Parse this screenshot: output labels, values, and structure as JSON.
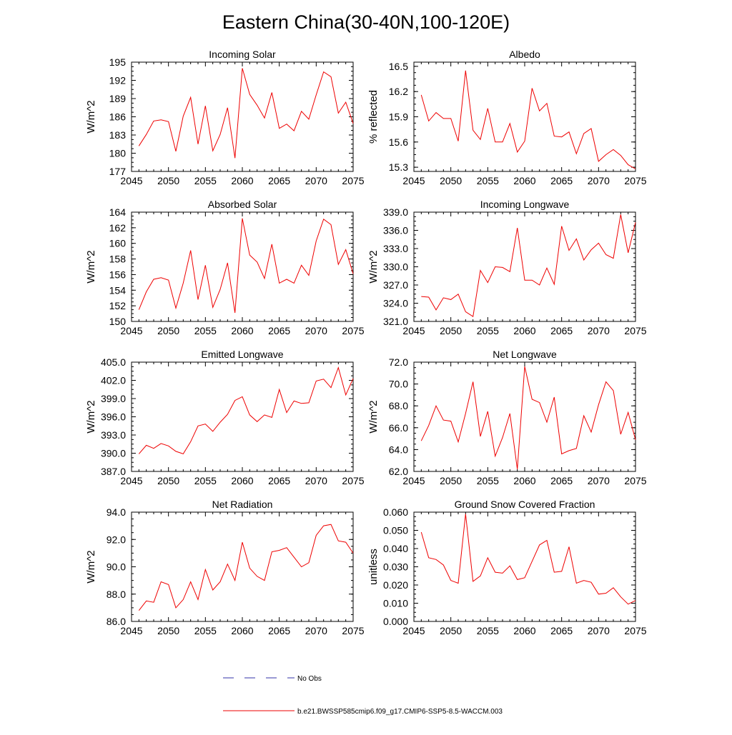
{
  "figure_title": "Eastern China(30-40N,100-120E)",
  "chart_data": [
    {
      "type": "line",
      "title": "Incoming Solar",
      "xlabel": "",
      "ylabel": "W/m^2",
      "xlim": [
        2045,
        2075
      ],
      "ylim": [
        177,
        195
      ],
      "xticks": [
        2045,
        2050,
        2055,
        2060,
        2065,
        2070,
        2075
      ],
      "yticks": [
        "177",
        "180",
        "183",
        "186",
        "189",
        "192",
        "195"
      ],
      "x": [
        2046,
        2047,
        2048,
        2049,
        2050,
        2051,
        2052,
        2053,
        2054,
        2055,
        2056,
        2057,
        2058,
        2059,
        2060,
        2061,
        2062,
        2063,
        2064,
        2065,
        2066,
        2067,
        2068,
        2069,
        2070,
        2071,
        2072,
        2073,
        2074,
        2075
      ],
      "values": [
        181.2,
        183.1,
        185.3,
        185.5,
        185.2,
        180.3,
        186.1,
        189.2,
        181.5,
        187.8,
        180.4,
        183.1,
        187.5,
        179.2,
        194.0,
        189.7,
        187.9,
        185.8,
        190.0,
        184.1,
        184.8,
        183.7,
        186.9,
        185.6,
        189.6,
        193.4,
        192.6,
        186.6,
        188.4,
        184.9
      ]
    },
    {
      "type": "line",
      "title": "Albedo",
      "xlabel": "",
      "ylabel": "% reflected",
      "xlim": [
        2045,
        2075
      ],
      "ylim": [
        15.25,
        16.55
      ],
      "xticks": [
        2045,
        2050,
        2055,
        2060,
        2065,
        2070,
        2075
      ],
      "yticks": [
        "15.3",
        "15.6",
        "15.9",
        "16.2",
        "16.5"
      ],
      "x": [
        2046,
        2047,
        2048,
        2049,
        2050,
        2051,
        2052,
        2053,
        2054,
        2055,
        2056,
        2057,
        2058,
        2059,
        2060,
        2061,
        2062,
        2063,
        2064,
        2065,
        2066,
        2067,
        2068,
        2069,
        2070,
        2071,
        2072,
        2073,
        2074,
        2075
      ],
      "values": [
        16.16,
        15.85,
        15.95,
        15.88,
        15.88,
        15.61,
        16.45,
        15.74,
        15.63,
        16.0,
        15.6,
        15.6,
        15.82,
        15.48,
        15.61,
        16.24,
        15.97,
        16.06,
        15.67,
        15.66,
        15.72,
        15.46,
        15.7,
        15.76,
        15.37,
        15.45,
        15.51,
        15.44,
        15.33,
        15.28
      ]
    },
    {
      "type": "line",
      "title": "Absorbed Solar",
      "xlabel": "",
      "ylabel": "W/m^2",
      "xlim": [
        2045,
        2075
      ],
      "ylim": [
        150,
        164
      ],
      "xticks": [
        2045,
        2050,
        2055,
        2060,
        2065,
        2070,
        2075
      ],
      "yticks": [
        "150",
        "152",
        "154",
        "156",
        "158",
        "160",
        "162",
        "164"
      ],
      "x": [
        2046,
        2047,
        2048,
        2049,
        2050,
        2051,
        2052,
        2053,
        2054,
        2055,
        2056,
        2057,
        2058,
        2059,
        2060,
        2061,
        2062,
        2063,
        2064,
        2065,
        2066,
        2067,
        2068,
        2069,
        2070,
        2071,
        2072,
        2073,
        2074,
        2075
      ],
      "values": [
        151.5,
        153.8,
        155.4,
        155.6,
        155.3,
        151.7,
        154.9,
        159.1,
        152.8,
        157.2,
        151.8,
        154.1,
        157.5,
        151.1,
        163.2,
        158.5,
        157.6,
        155.5,
        159.9,
        154.9,
        155.4,
        154.9,
        157.2,
        155.9,
        160.3,
        163.1,
        162.4,
        157.3,
        159.2,
        156.1
      ]
    },
    {
      "type": "line",
      "title": "Incoming Longwave",
      "xlabel": "",
      "ylabel": "W/m^2",
      "xlim": [
        2045,
        2075
      ],
      "ylim": [
        321,
        339
      ],
      "xticks": [
        2045,
        2050,
        2055,
        2060,
        2065,
        2070,
        2075
      ],
      "yticks": [
        "321.0",
        "324.0",
        "327.0",
        "330.0",
        "333.0",
        "336.0",
        "339.0"
      ],
      "x": [
        2046,
        2047,
        2048,
        2049,
        2050,
        2051,
        2052,
        2053,
        2054,
        2055,
        2056,
        2057,
        2058,
        2059,
        2060,
        2061,
        2062,
        2063,
        2064,
        2065,
        2066,
        2067,
        2068,
        2069,
        2070,
        2071,
        2072,
        2073,
        2074,
        2075
      ],
      "values": [
        325.1,
        325.0,
        322.9,
        324.9,
        324.6,
        325.5,
        322.6,
        321.8,
        329.4,
        327.4,
        330.0,
        329.9,
        329.2,
        336.4,
        327.8,
        327.8,
        327.0,
        329.8,
        327.1,
        336.7,
        332.7,
        334.6,
        331.1,
        332.8,
        333.9,
        332.0,
        331.4,
        338.6,
        332.3,
        337.3
      ]
    },
    {
      "type": "line",
      "title": "Emitted Longwave",
      "xlabel": "",
      "ylabel": "W/m^2",
      "xlim": [
        2045,
        2075
      ],
      "ylim": [
        387,
        405
      ],
      "xticks": [
        2045,
        2050,
        2055,
        2060,
        2065,
        2070,
        2075
      ],
      "yticks": [
        "387.0",
        "390.0",
        "393.0",
        "396.0",
        "399.0",
        "402.0",
        "405.0"
      ],
      "x": [
        2046,
        2047,
        2048,
        2049,
        2050,
        2051,
        2052,
        2053,
        2054,
        2055,
        2056,
        2057,
        2058,
        2059,
        2060,
        2061,
        2062,
        2063,
        2064,
        2065,
        2066,
        2067,
        2068,
        2069,
        2070,
        2071,
        2072,
        2073,
        2074,
        2075
      ],
      "values": [
        389.9,
        391.3,
        390.8,
        391.6,
        391.2,
        390.3,
        389.9,
        391.9,
        394.5,
        394.8,
        393.6,
        395.1,
        396.4,
        398.7,
        399.3,
        396.3,
        395.2,
        396.3,
        395.9,
        400.5,
        396.7,
        398.6,
        398.2,
        398.3,
        401.9,
        402.2,
        400.8,
        404.1,
        399.6,
        402.3
      ]
    },
    {
      "type": "line",
      "title": "Net Longwave",
      "xlabel": "",
      "ylabel": "W/m^2",
      "xlim": [
        2045,
        2075
      ],
      "ylim": [
        62,
        72
      ],
      "xticks": [
        2045,
        2050,
        2055,
        2060,
        2065,
        2070,
        2075
      ],
      "yticks": [
        "62.0",
        "64.0",
        "66.0",
        "68.0",
        "70.0",
        "72.0"
      ],
      "x": [
        2046,
        2047,
        2048,
        2049,
        2050,
        2051,
        2052,
        2053,
        2054,
        2055,
        2056,
        2057,
        2058,
        2059,
        2060,
        2061,
        2062,
        2063,
        2064,
        2065,
        2066,
        2067,
        2068,
        2069,
        2070,
        2071,
        2072,
        2073,
        2074,
        2075
      ],
      "values": [
        64.8,
        66.2,
        68.0,
        66.7,
        66.6,
        64.7,
        67.3,
        70.2,
        65.2,
        67.5,
        63.4,
        65.1,
        67.3,
        62.2,
        71.6,
        68.6,
        68.3,
        66.5,
        68.8,
        63.6,
        63.9,
        64.1,
        67.1,
        65.6,
        68.1,
        70.2,
        69.4,
        65.4,
        67.4,
        64.9
      ]
    },
    {
      "type": "line",
      "title": "Net Radiation",
      "xlabel": "",
      "ylabel": "W/m^2",
      "xlim": [
        2045,
        2075
      ],
      "ylim": [
        86,
        94
      ],
      "xticks": [
        2045,
        2050,
        2055,
        2060,
        2065,
        2070,
        2075
      ],
      "yticks": [
        "86.0",
        "88.0",
        "90.0",
        "92.0",
        "94.0"
      ],
      "x": [
        2046,
        2047,
        2048,
        2049,
        2050,
        2051,
        2052,
        2053,
        2054,
        2055,
        2056,
        2057,
        2058,
        2059,
        2060,
        2061,
        2062,
        2063,
        2064,
        2065,
        2066,
        2067,
        2068,
        2069,
        2070,
        2071,
        2072,
        2073,
        2074,
        2075
      ],
      "values": [
        86.8,
        87.5,
        87.4,
        88.9,
        88.7,
        87.0,
        87.6,
        88.9,
        87.6,
        89.8,
        88.3,
        88.9,
        90.2,
        89.0,
        91.8,
        89.9,
        89.3,
        89.0,
        91.1,
        91.2,
        91.4,
        90.7,
        90.0,
        90.3,
        92.3,
        93.0,
        93.1,
        91.9,
        91.8,
        91.0
      ]
    },
    {
      "type": "line",
      "title": "Ground Snow Covered Fraction",
      "xlabel": "",
      "ylabel": "unitless",
      "xlim": [
        2045,
        2075
      ],
      "ylim": [
        0,
        0.06
      ],
      "xticks": [
        2045,
        2050,
        2055,
        2060,
        2065,
        2070,
        2075
      ],
      "yticks": [
        "0.000",
        "0.010",
        "0.020",
        "0.030",
        "0.040",
        "0.050",
        "0.060"
      ],
      "x": [
        2046,
        2047,
        2048,
        2049,
        2050,
        2051,
        2052,
        2053,
        2054,
        2055,
        2056,
        2057,
        2058,
        2059,
        2060,
        2061,
        2062,
        2063,
        2064,
        2065,
        2066,
        2067,
        2068,
        2069,
        2070,
        2071,
        2072,
        2073,
        2074,
        2075
      ],
      "values": [
        0.049,
        0.035,
        0.034,
        0.031,
        0.0225,
        0.021,
        0.059,
        0.022,
        0.025,
        0.035,
        0.027,
        0.0265,
        0.0305,
        0.023,
        0.024,
        0.033,
        0.042,
        0.0445,
        0.027,
        0.0275,
        0.041,
        0.021,
        0.0225,
        0.0215,
        0.015,
        0.0155,
        0.0185,
        0.0135,
        0.0095,
        0.0115
      ]
    }
  ],
  "legend": {
    "placement": "bottom-center",
    "entries": [
      {
        "label": "No Obs",
        "color": "#3333aa",
        "style": "dashed"
      },
      {
        "label": "b.e21.BWSSP585cmip6.f09_g17.CMIP6-SSP5-8.5-WACCM.003",
        "color": "#ee0000",
        "style": "solid"
      }
    ]
  },
  "colors": {
    "series": "#ee0000",
    "axis": "#000000"
  }
}
